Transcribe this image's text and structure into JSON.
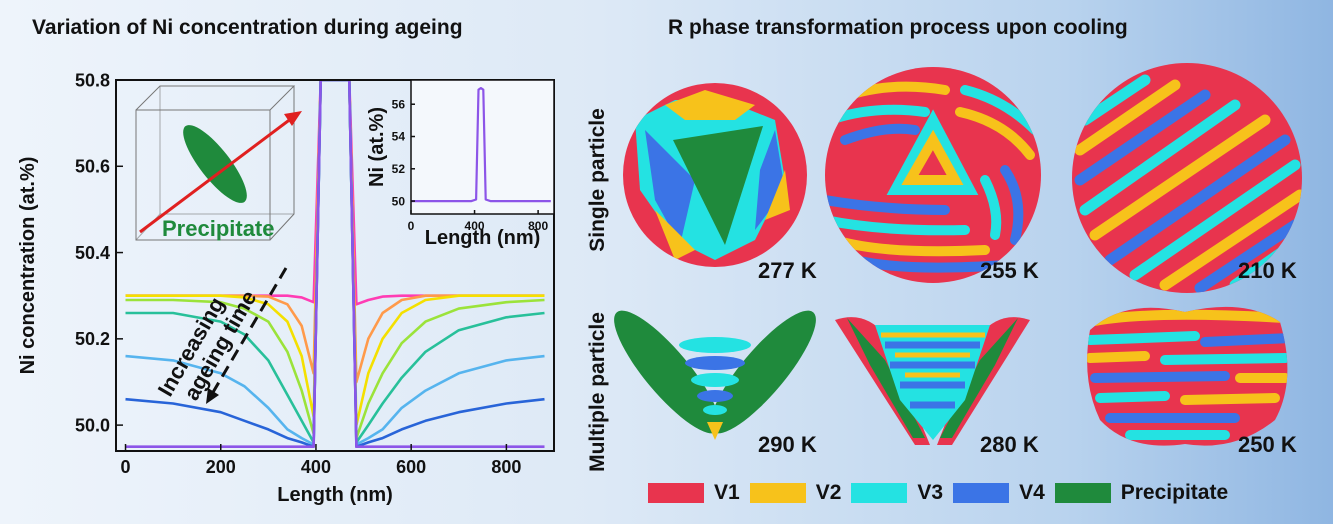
{
  "left_title": "Variation of Ni concentration during ageing",
  "right_title": "R phase transformation process upon cooling",
  "inset_label": "Precipitate",
  "annotation": [
    "Increasing",
    "ageing time"
  ],
  "row_labels": [
    "Single particle",
    "Multiple particle"
  ],
  "temperatures": [
    "277 K",
    "255 K",
    "210 K",
    "290 K",
    "280 K",
    "250 K"
  ],
  "legend": [
    {
      "label": "V1",
      "color": "#e8344e"
    },
    {
      "label": "V2",
      "color": "#f7c21b"
    },
    {
      "label": "V3",
      "color": "#24e2e2"
    },
    {
      "label": "V4",
      "color": "#3b74e6"
    },
    {
      "label": "Precipitate",
      "color": "#1f8a3c"
    }
  ],
  "chart_data": [
    {
      "type": "line",
      "xlabel": "Length (nm)",
      "ylabel": "Ni concentration (at.%)",
      "xlim": [
        -20,
        900
      ],
      "ylim": [
        49.94,
        50.8
      ],
      "xticks": [
        0,
        200,
        400,
        600,
        800
      ],
      "yticks": [
        50.0,
        50.2,
        50.4,
        50.6,
        50.8
      ],
      "x": [
        0,
        100,
        200,
        250,
        300,
        340,
        370,
        395,
        410,
        440,
        470,
        485,
        510,
        540,
        580,
        630,
        700,
        800,
        880
      ],
      "series": [
        {
          "color": "#ff3cb4",
          "values": [
            50.3,
            50.3,
            50.3,
            50.3,
            50.3,
            50.3,
            50.296,
            50.285,
            50.8,
            50.8,
            50.8,
            50.28,
            50.29,
            50.298,
            50.3,
            50.3,
            50.3,
            50.3,
            50.3
          ]
        },
        {
          "color": "#ff9a4a",
          "values": [
            50.3,
            50.3,
            50.3,
            50.3,
            50.298,
            50.28,
            50.23,
            50.12,
            50.8,
            50.8,
            50.8,
            50.1,
            50.2,
            50.26,
            50.29,
            50.3,
            50.3,
            50.3,
            50.3
          ]
        },
        {
          "color": "#f4e000",
          "values": [
            50.3,
            50.3,
            50.3,
            50.296,
            50.28,
            50.24,
            50.16,
            50.02,
            50.8,
            50.8,
            50.8,
            50.0,
            50.12,
            50.2,
            50.26,
            50.29,
            50.3,
            50.3,
            50.3
          ]
        },
        {
          "color": "#9be33a",
          "values": [
            50.29,
            50.29,
            50.285,
            50.27,
            50.24,
            50.17,
            50.08,
            49.98,
            50.8,
            50.8,
            50.8,
            49.97,
            50.05,
            50.12,
            50.19,
            50.24,
            50.27,
            50.285,
            50.29
          ]
        },
        {
          "color": "#28c09a",
          "values": [
            50.26,
            50.26,
            50.24,
            50.21,
            50.15,
            50.07,
            50.01,
            49.96,
            50.8,
            50.8,
            50.8,
            49.96,
            50.0,
            50.05,
            50.11,
            50.17,
            50.22,
            50.25,
            50.26
          ]
        },
        {
          "color": "#56b4ee",
          "values": [
            50.16,
            50.15,
            50.12,
            50.09,
            50.04,
            49.99,
            49.97,
            49.955,
            50.8,
            50.8,
            50.8,
            49.955,
            49.97,
            49.99,
            50.04,
            50.08,
            50.12,
            50.15,
            50.16
          ]
        },
        {
          "color": "#2864d8",
          "values": [
            50.06,
            50.05,
            50.03,
            50.01,
            49.99,
            49.97,
            49.96,
            49.95,
            50.8,
            50.8,
            50.8,
            49.95,
            49.96,
            49.97,
            49.99,
            50.01,
            50.03,
            50.05,
            50.06
          ]
        },
        {
          "color": "#8c55e8",
          "values": [
            49.95,
            49.95,
            49.95,
            49.95,
            49.95,
            49.95,
            49.95,
            49.95,
            50.8,
            50.8,
            50.8,
            49.95,
            49.95,
            49.95,
            49.95,
            49.95,
            49.95,
            49.95,
            49.95
          ]
        }
      ]
    },
    {
      "type": "line",
      "xlabel": "Length (nm)",
      "ylabel": "Ni (at.%)",
      "xlim": [
        0,
        900
      ],
      "ylim": [
        49.2,
        57.5
      ],
      "xticks": [
        0,
        400,
        800
      ],
      "yticks": [
        50,
        52,
        54,
        56
      ],
      "x": [
        0,
        100,
        200,
        300,
        380,
        410,
        425,
        440,
        455,
        470,
        500,
        600,
        700,
        800,
        880
      ],
      "series": [
        {
          "color": "#8c55e8",
          "values": [
            50.0,
            50.0,
            50.0,
            50.0,
            50.0,
            50.1,
            56.9,
            57.0,
            56.9,
            50.1,
            50.0,
            50.0,
            50.0,
            50.0,
            50.0
          ]
        }
      ]
    }
  ]
}
